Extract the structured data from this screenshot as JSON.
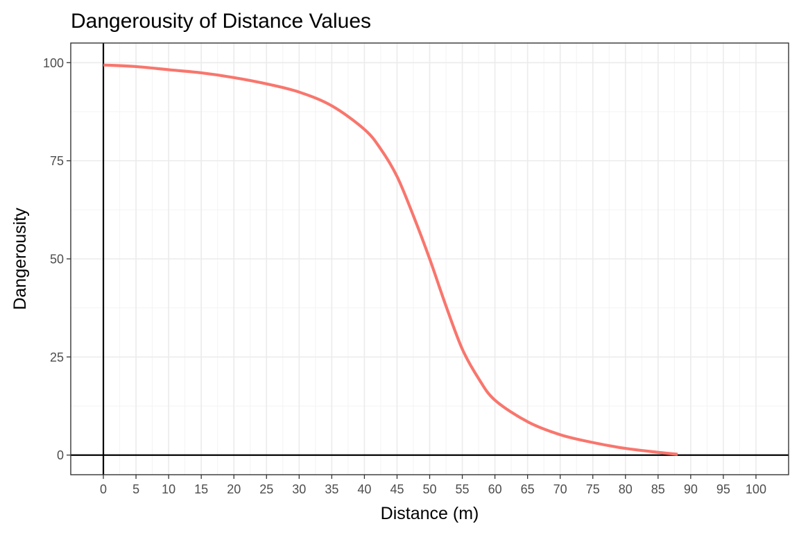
{
  "chart_data": {
    "type": "line",
    "title": "Dangerousity of Distance Values",
    "xlabel": "Distance (m)",
    "ylabel": "Dangerousity",
    "xlim": [
      -5,
      105
    ],
    "ylim": [
      -5,
      105
    ],
    "x_ticks": [
      0,
      5,
      10,
      15,
      20,
      25,
      30,
      35,
      40,
      45,
      50,
      55,
      60,
      65,
      70,
      75,
      80,
      85,
      90,
      95,
      100
    ],
    "x_tick_labels": [
      "0",
      "5",
      "10",
      "15",
      "20",
      "25",
      "30",
      "35",
      "40",
      "45",
      "50",
      "55",
      "60",
      "65",
      "70",
      "75",
      "80",
      "85",
      "90",
      "95",
      "100"
    ],
    "y_ticks": [
      0,
      25,
      50,
      75,
      100
    ],
    "y_tick_labels": [
      "0",
      "25",
      "50",
      "75",
      "100"
    ],
    "grid": true,
    "reference_lines": {
      "x": 0,
      "y": 0
    },
    "line_color": "#f8766d",
    "series": [
      {
        "x": [
          0,
          5,
          10,
          15,
          20,
          25,
          30,
          35,
          40,
          42.5,
          45,
          47.5,
          50,
          52.5,
          55,
          57.5,
          60,
          65,
          70,
          75,
          80,
          85,
          88
        ],
        "y": [
          99.4,
          99.0,
          98.2,
          97.4,
          96.2,
          94.6,
          92.5,
          89.0,
          83.0,
          78.0,
          71.0,
          61.0,
          50.0,
          38.0,
          27.0,
          19.5,
          14.0,
          8.5,
          5.2,
          3.2,
          1.7,
          0.7,
          0.2
        ]
      }
    ]
  }
}
